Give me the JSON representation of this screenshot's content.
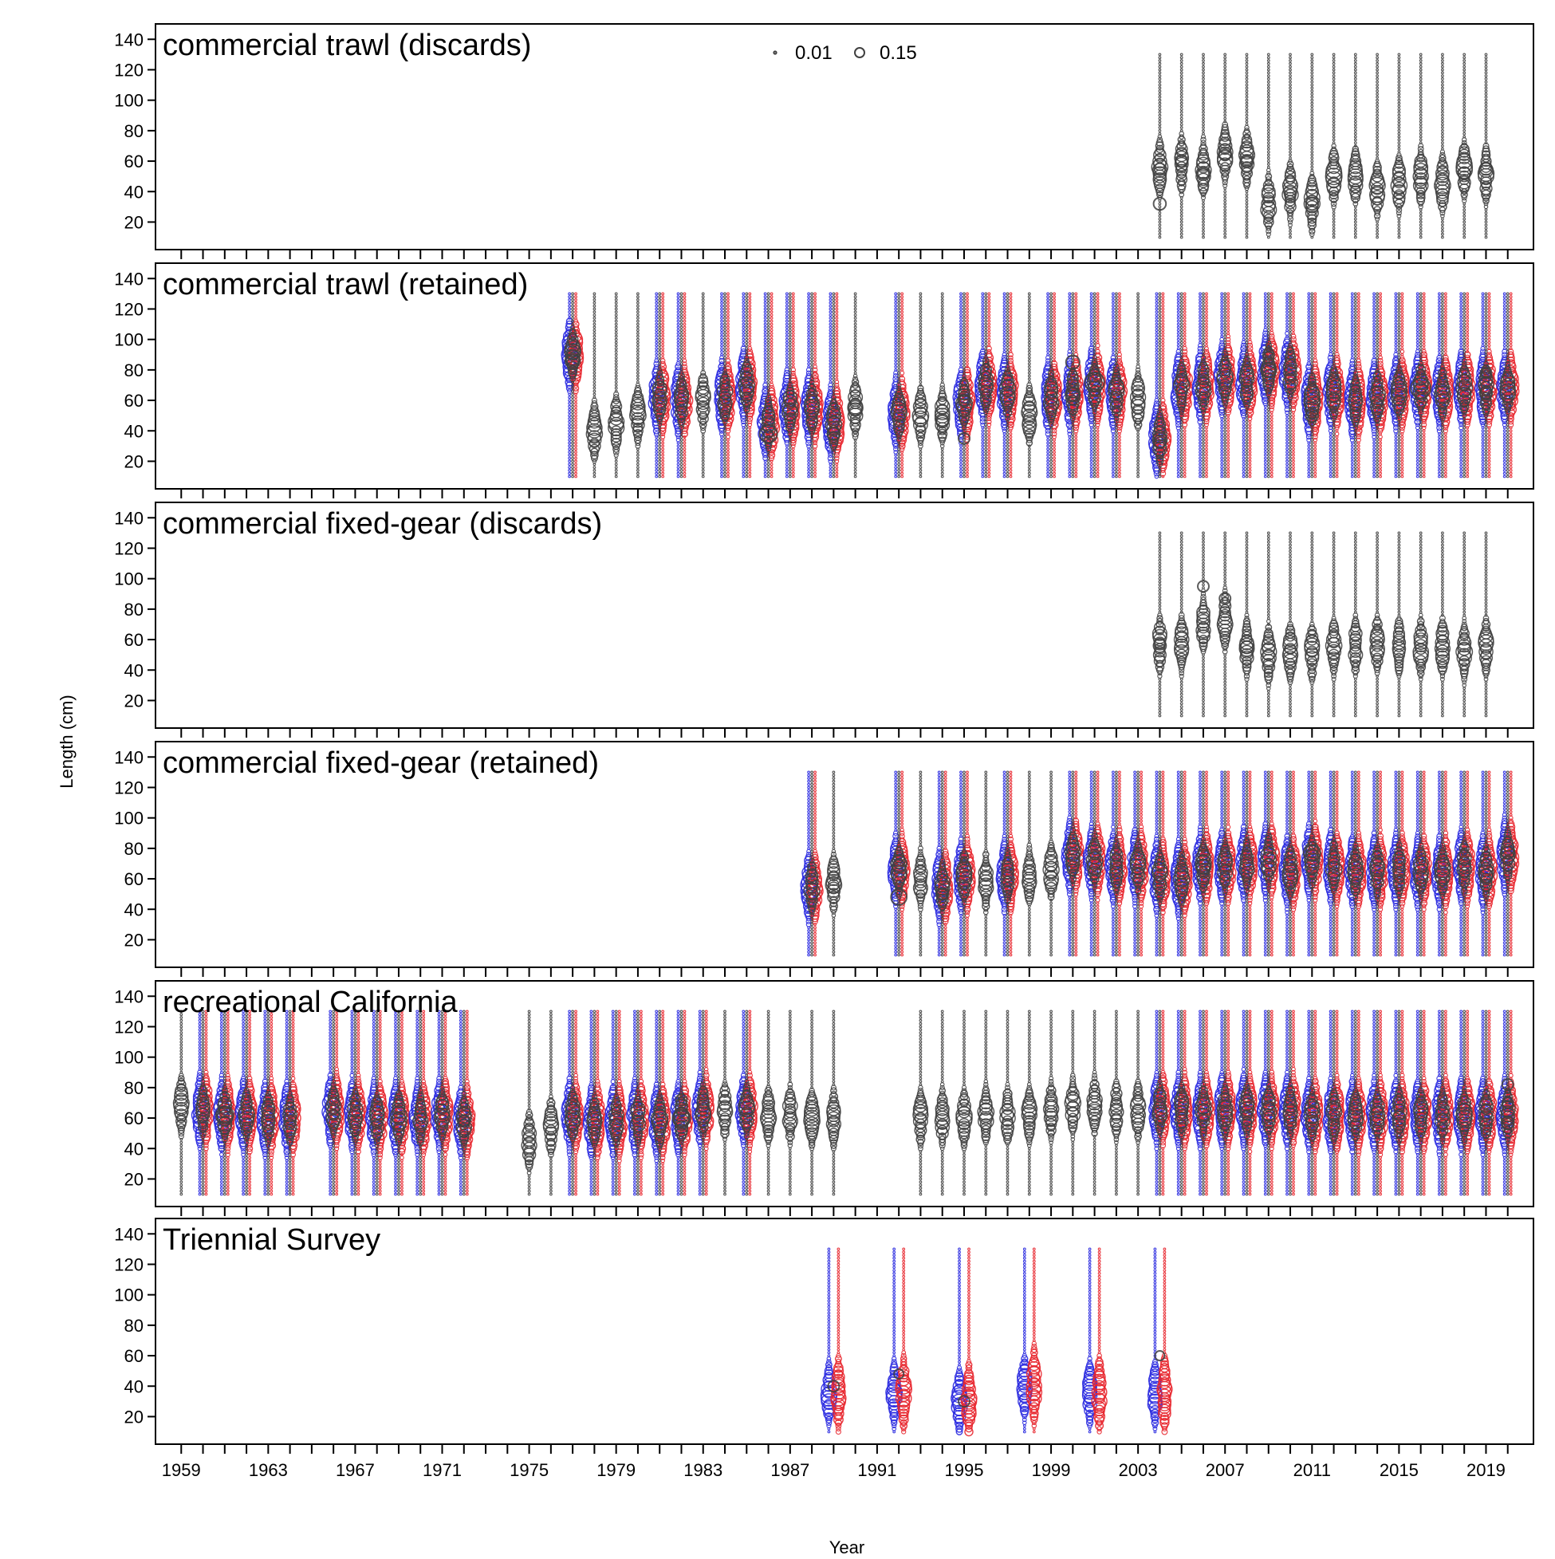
{
  "chart_data": {
    "type": "scatter",
    "subtype": "bubble plot of length composition by year",
    "xlabel": "Year",
    "ylabel": "Length (cm)",
    "xlim": [
      1958,
      2021
    ],
    "ylim": [
      4,
      148
    ],
    "y_ticks": [
      20,
      40,
      60,
      80,
      100,
      120,
      140
    ],
    "x_ticks": [
      1959,
      1963,
      1967,
      1971,
      1975,
      1979,
      1983,
      1987,
      1991,
      1995,
      1999,
      2003,
      2007,
      2011,
      2015,
      2019
    ],
    "length_bins": [
      10,
      130,
      2
    ],
    "legend": {
      "position": "top-center",
      "entries": [
        {
          "label": "0.01",
          "proportion": 0.01
        },
        {
          "label": "0.15",
          "proportion": 0.15
        }
      ]
    },
    "series_colors": {
      "unsexed": "#404040",
      "female": "#e8262d",
      "male": "#2a2ae0"
    },
    "panels": [
      {
        "name": "commercial trawl (discards)",
        "years": [
          2004,
          2005,
          2006,
          2007,
          2008,
          2009,
          2010,
          2011,
          2012,
          2013,
          2014,
          2015,
          2016,
          2017,
          2018,
          2019
        ],
        "types": [
          "U",
          "U",
          "U",
          "U",
          "U",
          "U",
          "U",
          "U",
          "U",
          "U",
          "U",
          "U",
          "U",
          "U",
          "U",
          "U"
        ],
        "modes": [
          55,
          58,
          55,
          65,
          62,
          32,
          40,
          32,
          50,
          50,
          42,
          45,
          50,
          45,
          55,
          52
        ],
        "big": [
          [
            2004,
            32,
            0.05
          ],
          [
            2004,
            55,
            0.04
          ],
          [
            2005,
            60,
            0.05
          ],
          [
            2006,
            52,
            0.04
          ],
          [
            2007,
            65,
            0.05
          ],
          [
            2008,
            60,
            0.04
          ],
          [
            2010,
            38,
            0.04
          ],
          [
            2011,
            32,
            0.05
          ],
          [
            2018,
            52,
            0.05
          ],
          [
            2019,
            55,
            0.05
          ]
        ]
      },
      {
        "name": "commercial trawl (retained)",
        "years": [
          1977,
          1978,
          1979,
          1980,
          1981,
          1982,
          1983,
          1984,
          1985,
          1986,
          1987,
          1988,
          1989,
          1990,
          1992,
          1993,
          1994,
          1995,
          1996,
          1997,
          1998,
          1999,
          2000,
          2001,
          2002,
          2003,
          2004,
          2005,
          2006,
          2007,
          2008,
          2009,
          2010,
          2011,
          2012,
          2013,
          2014,
          2015,
          2016,
          2017,
          2018,
          2019,
          2020
        ],
        "types": [
          "S",
          "U",
          "U",
          "U",
          "S",
          "S",
          "U",
          "S",
          "S",
          "S",
          "S",
          "S",
          "S",
          "U",
          "S",
          "U",
          "U",
          "S",
          "S",
          "S",
          "U",
          "S",
          "S",
          "S",
          "S",
          "U",
          "S",
          "S",
          "S",
          "S",
          "S",
          "S",
          "S",
          "S",
          "S",
          "S",
          "S",
          "S",
          "S",
          "S",
          "S",
          "S",
          "S"
        ],
        "modes": [
          90,
          40,
          45,
          50,
          62,
          60,
          60,
          62,
          70,
          45,
          55,
          55,
          45,
          55,
          52,
          50,
          50,
          58,
          70,
          65,
          50,
          62,
          65,
          70,
          65,
          60,
          35,
          68,
          70,
          75,
          72,
          80,
          78,
          60,
          65,
          60,
          62,
          65,
          68,
          65,
          68,
          68,
          68
        ],
        "big": [
          [
            1977,
            92,
            0.08
          ],
          [
            1977,
            86,
            0.05
          ],
          [
            1986,
            38,
            0.1
          ],
          [
            1989,
            38,
            0.05
          ],
          [
            1990,
            55,
            0.07
          ],
          [
            1994,
            47,
            0.05
          ],
          [
            1995,
            35,
            0.04
          ],
          [
            1995,
            60,
            0.05
          ],
          [
            2000,
            85,
            0.06
          ],
          [
            2000,
            64,
            0.05
          ],
          [
            2001,
            72,
            0.12
          ],
          [
            2004,
            33,
            0.05
          ],
          [
            2009,
            90,
            0.04
          ],
          [
            2009,
            80,
            0.06
          ],
          [
            2011,
            50,
            0.05
          ],
          [
            2016,
            68,
            0.13
          ],
          [
            2019,
            65,
            0.05
          ],
          [
            2019,
            78,
            0.04
          ]
        ]
      },
      {
        "name": "commercial fixed-gear (discards)",
        "years": [
          2004,
          2005,
          2006,
          2007,
          2008,
          2009,
          2010,
          2011,
          2012,
          2013,
          2014,
          2015,
          2016,
          2017,
          2018,
          2019
        ],
        "types": [
          "U",
          "U",
          "U",
          "U",
          "U",
          "U",
          "U",
          "U",
          "U",
          "U",
          "U",
          "U",
          "U",
          "U",
          "U",
          "U"
        ],
        "modes": [
          57,
          57,
          70,
          72,
          55,
          50,
          52,
          52,
          55,
          56,
          57,
          56,
          55,
          55,
          52,
          55
        ],
        "big": [
          [
            2004,
            57,
            0.04
          ],
          [
            2006,
            95,
            0.04
          ],
          [
            2007,
            87,
            0.04
          ],
          [
            2008,
            55,
            0.05
          ]
        ]
      },
      {
        "name": "commercial fixed-gear (retained)",
        "years": [
          1988,
          1989,
          1992,
          1993,
          1994,
          1995,
          1996,
          1997,
          1998,
          1999,
          2000,
          2001,
          2002,
          2003,
          2004,
          2005,
          2006,
          2007,
          2008,
          2009,
          2010,
          2011,
          2012,
          2013,
          2014,
          2015,
          2016,
          2017,
          2018,
          2019,
          2020
        ],
        "types": [
          "S",
          "U",
          "S",
          "U",
          "S",
          "S",
          "U",
          "S",
          "U",
          "U",
          "S",
          "S",
          "S",
          "S",
          "S",
          "S",
          "S",
          "S",
          "S",
          "S",
          "S",
          "S",
          "S",
          "S",
          "S",
          "S",
          "S",
          "S",
          "S",
          "S",
          "S"
        ],
        "modes": [
          55,
          57,
          65,
          60,
          55,
          62,
          58,
          62,
          62,
          65,
          75,
          72,
          68,
          68,
          62,
          60,
          68,
          68,
          70,
          72,
          65,
          72,
          68,
          65,
          65,
          66,
          65,
          65,
          68,
          65,
          75
        ],
        "big": [
          [
            1989,
            56,
            0.08
          ],
          [
            1992,
            48,
            0.08
          ],
          [
            1992,
            70,
            0.08
          ],
          [
            1994,
            50,
            0.05
          ],
          [
            2006,
            68,
            0.06
          ],
          [
            2011,
            77,
            0.09
          ],
          [
            2019,
            62,
            0.06
          ],
          [
            2020,
            77,
            0.05
          ]
        ]
      },
      {
        "name": "recreational California",
        "years": [
          1959,
          1960,
          1961,
          1962,
          1963,
          1964,
          1966,
          1967,
          1968,
          1969,
          1970,
          1971,
          1972,
          1975,
          1976,
          1977,
          1978,
          1979,
          1980,
          1981,
          1982,
          1983,
          1984,
          1985,
          1986,
          1987,
          1988,
          1989,
          1993,
          1994,
          1995,
          1996,
          1997,
          1998,
          1999,
          2000,
          2001,
          2002,
          2003,
          2004,
          2005,
          2006,
          2007,
          2008,
          2009,
          2010,
          2011,
          2012,
          2013,
          2014,
          2015,
          2016,
          2017,
          2018,
          2019,
          2020
        ],
        "types": [
          "U",
          "S",
          "S",
          "S",
          "S",
          "S",
          "S",
          "S",
          "S",
          "S",
          "S",
          "S",
          "S",
          "U",
          "U",
          "S",
          "S",
          "S",
          "S",
          "S",
          "S",
          "S",
          "U",
          "S",
          "U",
          "U",
          "U",
          "U",
          "U",
          "U",
          "U",
          "U",
          "U",
          "U",
          "U",
          "U",
          "U",
          "U",
          "U",
          "S",
          "S",
          "S",
          "S",
          "S",
          "S",
          "S",
          "S",
          "S",
          "S",
          "S",
          "S",
          "S",
          "S",
          "S",
          "S",
          "S"
        ],
        "modes": [
          68,
          65,
          62,
          62,
          60,
          60,
          65,
          62,
          60,
          60,
          60,
          62,
          58,
          45,
          55,
          62,
          58,
          58,
          60,
          58,
          60,
          65,
          65,
          65,
          62,
          62,
          60,
          60,
          60,
          60,
          60,
          62,
          62,
          62,
          65,
          68,
          68,
          65,
          65,
          66,
          65,
          65,
          65,
          65,
          65,
          65,
          62,
          62,
          62,
          62,
          62,
          62,
          62,
          62,
          62,
          62
        ],
        "big": [
          [
            1961,
            62,
            0.1
          ],
          [
            1972,
            58,
            0.04
          ],
          [
            1982,
            60,
            0.1
          ],
          [
            1982,
            72,
            0.04
          ],
          [
            2020,
            82,
            0.04
          ],
          [
            2020,
            70,
            0.04
          ],
          [
            2020,
            57,
            0.05
          ]
        ]
      },
      {
        "name": "Triennial Survey",
        "years": [
          1989,
          1992,
          1995,
          1998,
          2001,
          2004
        ],
        "types": [
          "MF",
          "MF",
          "MF",
          "MF",
          "MF",
          "MF"
        ],
        "modes": [
          35,
          35,
          30,
          40,
          35,
          35
        ],
        "big": [
          [
            1989,
            40,
            0.04
          ],
          [
            1992,
            48,
            0.03
          ],
          [
            1995,
            30,
            0.04
          ],
          [
            2004,
            60,
            0.03
          ]
        ]
      }
    ]
  }
}
